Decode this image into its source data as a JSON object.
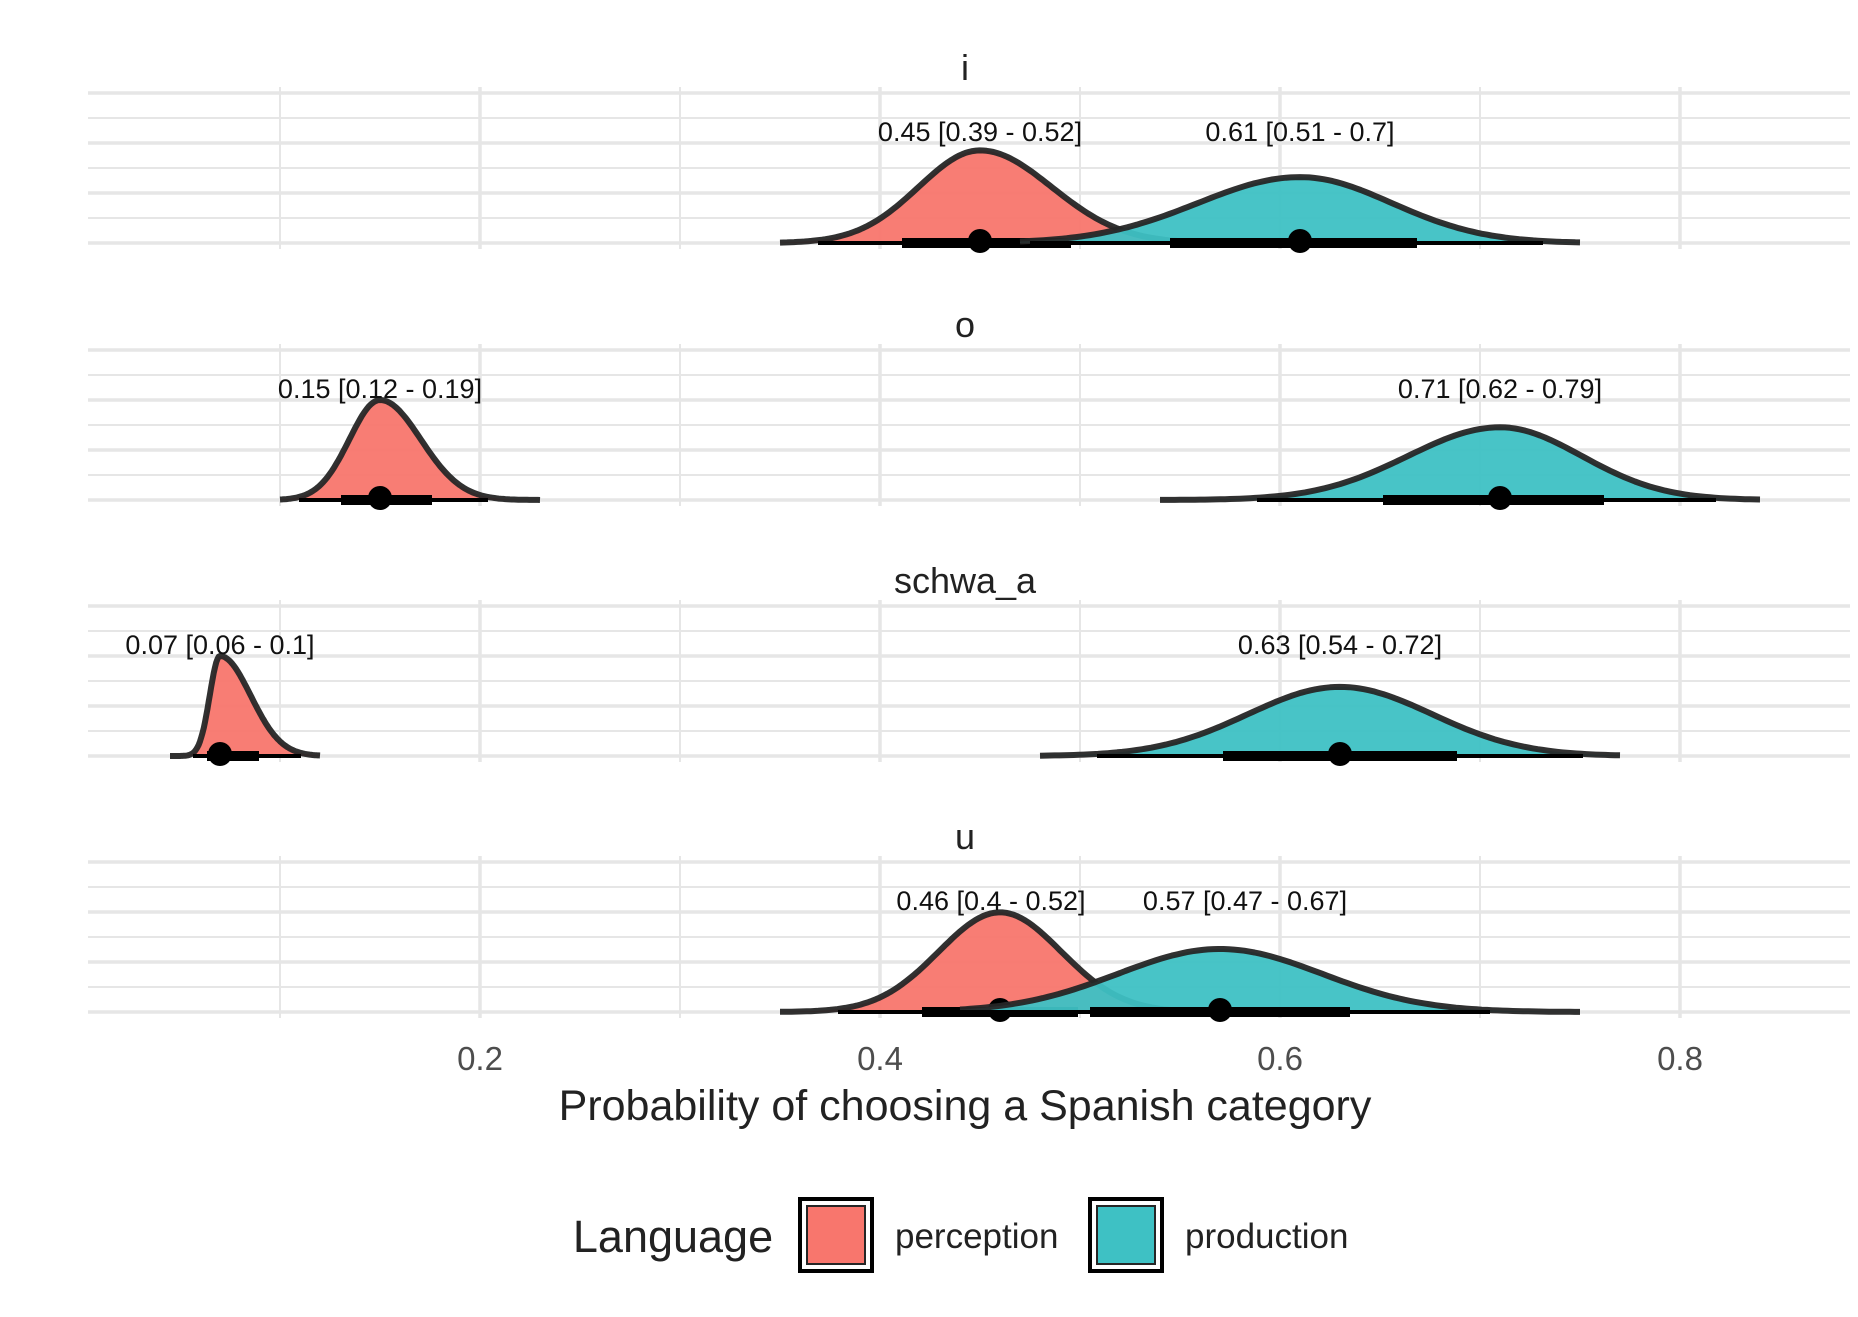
{
  "colors": {
    "perception": "#F8766D",
    "production": "#3EC1C4",
    "outline": "#262626",
    "grid": "#E6E6E6",
    "text": "#222222",
    "axis_text": "#4D4D4D"
  },
  "chart_data": {
    "type": "density-interval",
    "title": "",
    "xlabel": "Probability of choosing a Spanish category",
    "ylabel": "",
    "xlim": [
      0.005,
      0.88
    ],
    "x_ticks": [
      0.2,
      0.4,
      0.6,
      0.8
    ],
    "x_tick_labels": [
      "0.2",
      "0.4",
      "0.6",
      "0.8"
    ],
    "grid": true,
    "legend": {
      "title": "Language",
      "position": "bottom",
      "entries": [
        {
          "key": "perception",
          "label": "perception"
        },
        {
          "key": "production",
          "label": "production"
        }
      ]
    },
    "facets": [
      {
        "label": "i",
        "series": [
          {
            "group": "perception",
            "median": 0.45,
            "lower": 0.39,
            "upper": 0.52,
            "range": [
              0.35,
              0.56
            ],
            "annotation": "0.45 [0.39 - 0.52]"
          },
          {
            "group": "production",
            "median": 0.61,
            "lower": 0.51,
            "upper": 0.7,
            "range": [
              0.47,
              0.75
            ],
            "annotation": "0.61 [0.51 - 0.7]"
          }
        ]
      },
      {
        "label": "o",
        "series": [
          {
            "group": "perception",
            "median": 0.15,
            "lower": 0.12,
            "upper": 0.19,
            "range": [
              0.1,
              0.23
            ],
            "annotation": "0.15 [0.12 - 0.19]"
          },
          {
            "group": "production",
            "median": 0.71,
            "lower": 0.62,
            "upper": 0.79,
            "range": [
              0.54,
              0.84
            ],
            "annotation": "0.71 [0.62 - 0.79]"
          }
        ]
      },
      {
        "label": "schwa_a",
        "series": [
          {
            "group": "perception",
            "median": 0.07,
            "lower": 0.06,
            "upper": 0.1,
            "range": [
              0.045,
              0.12
            ],
            "annotation": "0.07 [0.06 - 0.1]"
          },
          {
            "group": "production",
            "median": 0.63,
            "lower": 0.54,
            "upper": 0.72,
            "range": [
              0.48,
              0.77
            ],
            "annotation": "0.63 [0.54 - 0.72]"
          }
        ]
      },
      {
        "label": "u",
        "series": [
          {
            "group": "perception",
            "median": 0.46,
            "lower": 0.4,
            "upper": 0.52,
            "range": [
              0.35,
              0.58
            ],
            "annotation": "0.46 [0.4 - 0.52]"
          },
          {
            "group": "production",
            "median": 0.57,
            "lower": 0.47,
            "upper": 0.67,
            "range": [
              0.44,
              0.75
            ],
            "annotation": "0.57 [0.47 - 0.67]"
          }
        ]
      }
    ]
  }
}
